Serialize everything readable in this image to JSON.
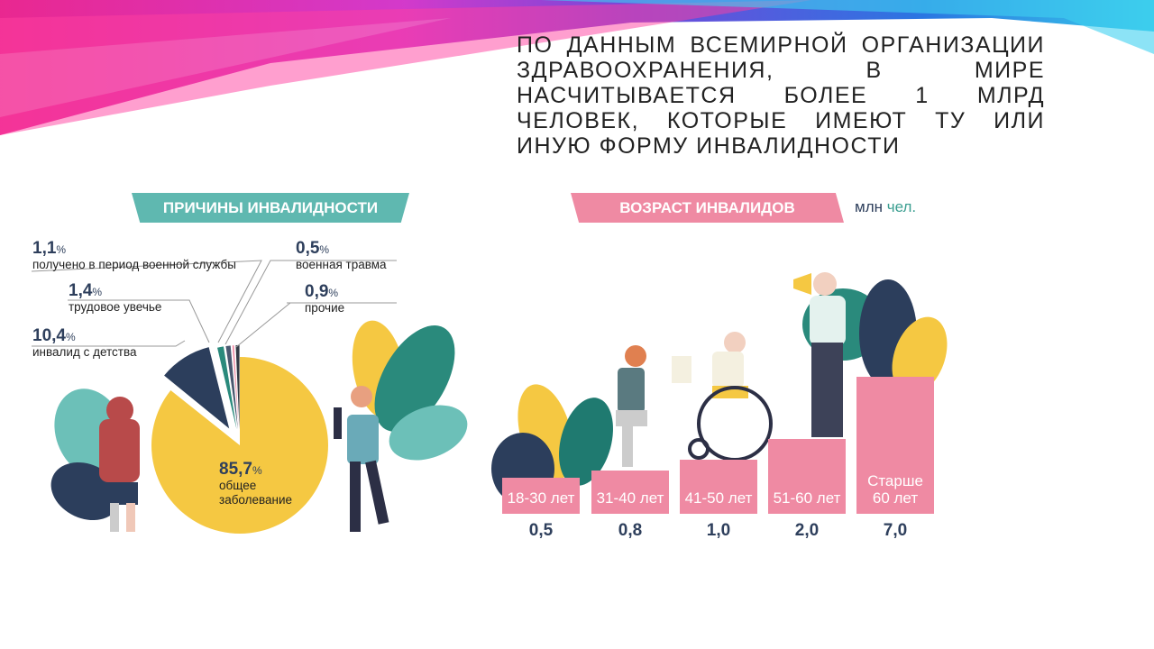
{
  "title": "По данным Всемирной организации здравоохранения, в мире насчитывается более 1 млрд человек, которые имеют ту или иную форму инвалидности",
  "chart_data": [
    {
      "type": "pie",
      "title": "ПРИЧИНЫ ИНВАЛИДНОСТИ",
      "unit": "%",
      "slices": [
        {
          "label": "общее заболевание",
          "value": 85.7,
          "display": "85,7",
          "color": "#f5c842"
        },
        {
          "label": "инвалид с детства",
          "value": 10.4,
          "display": "10,4",
          "color": "#2c3e5c"
        },
        {
          "label": "трудовое увечье",
          "value": 1.4,
          "display": "1,4",
          "color": "#2a8a7c"
        },
        {
          "label": "получено в период военной службы",
          "value": 1.1,
          "display": "1,1",
          "color": "#4a5870"
        },
        {
          "label": "военная травма",
          "value": 0.5,
          "display": "0,5",
          "color": "#ef8aa3"
        },
        {
          "label": "прочие",
          "value": 0.9,
          "display": "0,9",
          "color": "#333a45"
        }
      ]
    },
    {
      "type": "bar",
      "title": "ВОЗРАСТ ИНВАЛИДОВ",
      "unit_a": "млн",
      "unit_b": "чел.",
      "categories": [
        "18-30 лет",
        "31-40 лет",
        "41-50 лет",
        "51-60 лет",
        "Старше 60 лет"
      ],
      "values": [
        0.5,
        0.8,
        1.0,
        2.0,
        7.0
      ],
      "value_labels": [
        "0,5",
        "0,8",
        "1,0",
        "2,0",
        "7,0"
      ],
      "color": "#ef8aa3"
    }
  ]
}
